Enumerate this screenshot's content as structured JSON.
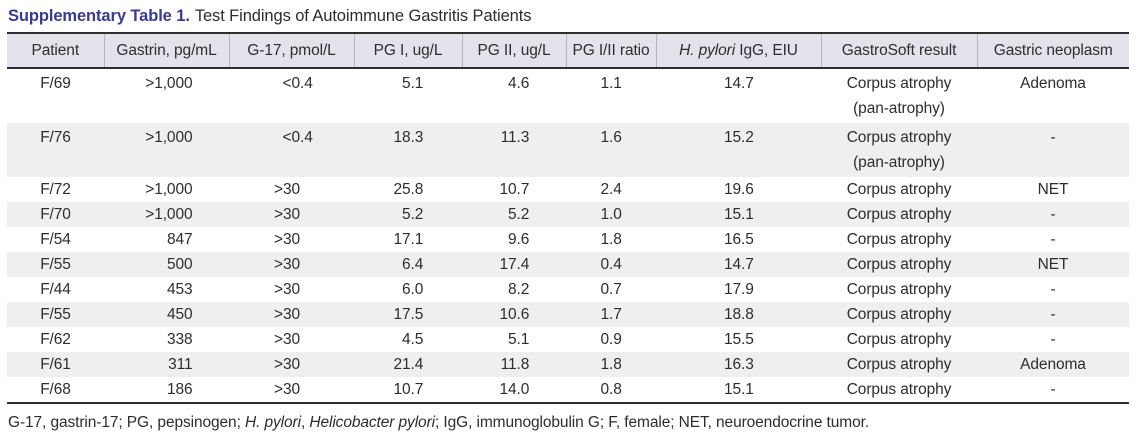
{
  "colors": {
    "accent": "#3a3a8c",
    "header_bg": "#e4e2ea",
    "stripe_bg": "#f0eff0",
    "rule": "#2e2e2e",
    "text": "#2d2d2d",
    "header_divider": "#b7b5c1"
  },
  "title": {
    "label": "Supplementary Table 1.",
    "text": "Test Findings of Autoimmune Gastritis Patients"
  },
  "table": {
    "columns": [
      {
        "key": "patient",
        "label": "Patient"
      },
      {
        "key": "gastrin",
        "label": "Gastrin, pg/mL"
      },
      {
        "key": "g17",
        "label": "G-17, pmol/L"
      },
      {
        "key": "pg1",
        "label": "PG I, ug/L"
      },
      {
        "key": "pg2",
        "label": "PG II, ug/L"
      },
      {
        "key": "ratio",
        "label": "PG I/II ratio"
      },
      {
        "key": "hpylori_igg",
        "label_italic": "H. pylori",
        "label_rest": " IgG, EIU"
      },
      {
        "key": "gastrosoft",
        "label": "GastroSoft result"
      },
      {
        "key": "neoplasm",
        "label": "Gastric neoplasm"
      }
    ],
    "rows": [
      [
        "F/69",
        ">1,000",
        "<0.4",
        "5.1",
        "4.6",
        "1.1",
        "14.7",
        [
          "Corpus atrophy",
          "(pan-atrophy)"
        ],
        "Adenoma"
      ],
      [
        "F/76",
        ">1,000",
        "<0.4",
        "18.3",
        "11.3",
        "1.6",
        "15.2",
        [
          "Corpus atrophy",
          "(pan-atrophy)"
        ],
        "-"
      ],
      [
        "F/72",
        ">1,000",
        ">30",
        "25.8",
        "10.7",
        "2.4",
        "19.6",
        "Corpus atrophy",
        "NET"
      ],
      [
        "F/70",
        ">1,000",
        ">30",
        "5.2",
        "5.2",
        "1.0",
        "15.1",
        "Corpus atrophy",
        "-"
      ],
      [
        "F/54",
        "847",
        ">30",
        "17.1",
        "9.6",
        "1.8",
        "16.5",
        "Corpus atrophy",
        "-"
      ],
      [
        "F/55",
        "500",
        ">30",
        "6.4",
        "17.4",
        "0.4",
        "14.7",
        "Corpus atrophy",
        "NET"
      ],
      [
        "F/44",
        "453",
        ">30",
        "6.0",
        "8.2",
        "0.7",
        "17.9",
        "Corpus atrophy",
        "-"
      ],
      [
        "F/55",
        "450",
        ">30",
        "17.5",
        "10.6",
        "1.7",
        "18.8",
        "Corpus atrophy",
        "-"
      ],
      [
        "F/62",
        "338",
        ">30",
        "4.5",
        "5.1",
        "0.9",
        "15.5",
        "Corpus atrophy",
        "-"
      ],
      [
        "F/61",
        "311",
        ">30",
        "21.4",
        "11.8",
        "1.8",
        "16.3",
        "Corpus atrophy",
        "Adenoma"
      ],
      [
        "F/68",
        "186",
        ">30",
        "10.7",
        "14.0",
        "0.8",
        "15.1",
        "Corpus atrophy",
        "-"
      ]
    ]
  },
  "footnote": {
    "segments": [
      {
        "text": "G-17, gastrin-17; PG, pepsinogen; "
      },
      {
        "text": "H. pylori",
        "italic": true
      },
      {
        "text": ", "
      },
      {
        "text": "Helicobacter pylori",
        "italic": true
      },
      {
        "text": "; IgG, immunoglobulin G; F, female; NET, neuroendocrine tumor."
      }
    ]
  }
}
